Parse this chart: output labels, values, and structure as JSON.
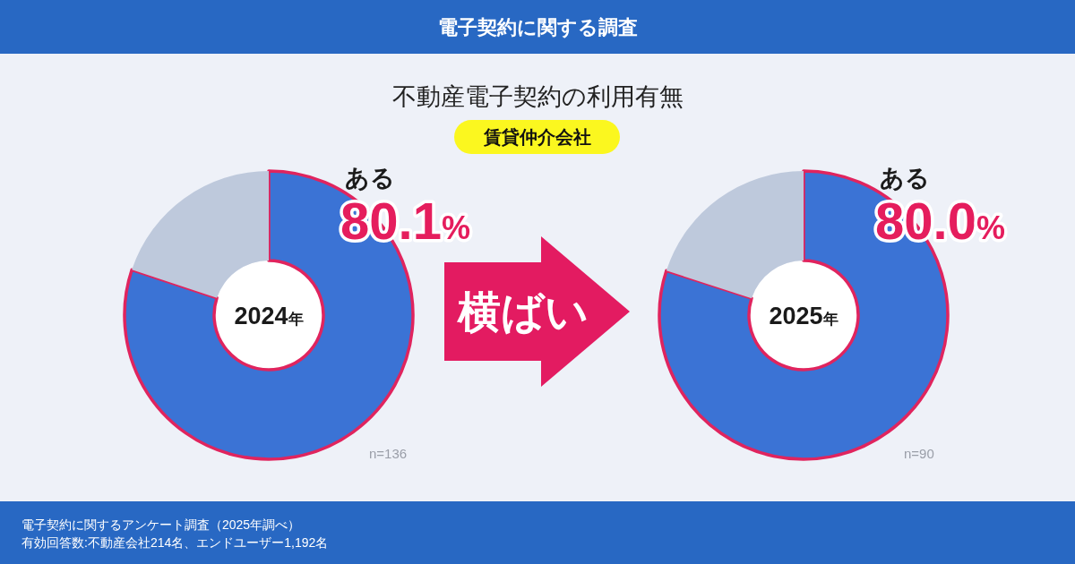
{
  "chart_data": [
    {
      "type": "other",
      "title": "電子契約に関する調査",
      "subtitle": "不動産電子契約の利用有無",
      "annotations": [
        "賃貸仲介会社",
        "横ばい",
        "電子契約に関するアンケート調査（2025年調べ）",
        "有効回答数:不動産会社214名、エンドユーザー1,192名"
      ]
    },
    {
      "type": "donut",
      "title": "2024年",
      "categories": [
        "ある",
        null
      ],
      "values": [
        80.1,
        19.9
      ],
      "colors": [
        "#3b73d5",
        "#bec9dc"
      ],
      "value_labels": [
        "80.1%",
        null
      ],
      "annotations": [
        "n=136"
      ]
    },
    {
      "type": "donut",
      "title": "2025年",
      "categories": [
        "ある",
        null
      ],
      "values": [
        80.0,
        20.0
      ],
      "colors": [
        "#3b73d5",
        "#bec9dc"
      ],
      "value_labels": [
        "80.0%",
        null
      ],
      "annotations": [
        "n=90"
      ]
    }
  ]
}
